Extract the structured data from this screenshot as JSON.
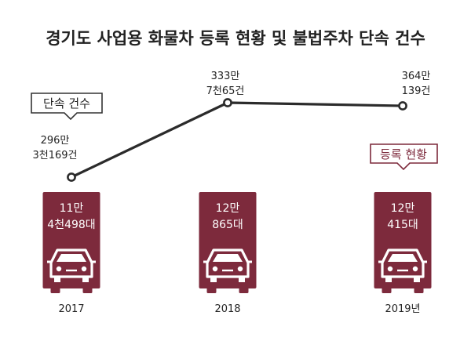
{
  "title": "경기도 사업용 화물차 등록 현황 및 불법주차 단속 건수",
  "legend": {
    "enforcement": "단속 건수",
    "registration": "등록 현황"
  },
  "colors": {
    "accent": "#7d2a3c",
    "line": "#2b2b2b",
    "text": "#222222"
  },
  "chart_data": {
    "type": "bar",
    "categories": [
      "2017",
      "2018",
      "2019년"
    ],
    "series": [
      {
        "name": "등록 현황",
        "type": "bar",
        "values": [
          114498,
          120865,
          120415
        ],
        "labels": [
          [
            "11만",
            "4천498대"
          ],
          [
            "12만",
            "865대"
          ],
          [
            "12만",
            "415대"
          ]
        ]
      },
      {
        "name": "단속 건수",
        "type": "line",
        "values": [
          2963169,
          3337065,
          3640139
        ],
        "labels": [
          [
            "296만",
            "3천169건"
          ],
          [
            "333만",
            "7천65건"
          ],
          [
            "364만",
            "139건"
          ]
        ]
      }
    ],
    "legend_position": "annotations",
    "grid": false
  }
}
